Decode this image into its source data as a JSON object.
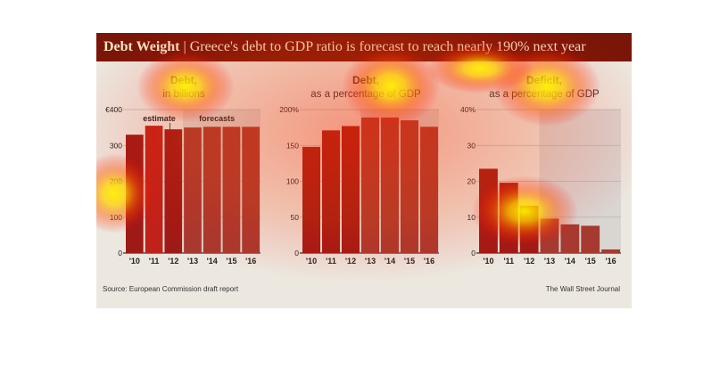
{
  "header": {
    "title_bold": "Debt Weight",
    "separator": "|",
    "title_rest": "Greece's debt to GDP ratio is forecast to reach nearly 190% next year"
  },
  "footer": {
    "source": "Source: European Commission draft report",
    "credit": "The Wall Street Journal"
  },
  "colors": {
    "actual_bar": "#9e1a16",
    "highlight_bar": "#c0221a",
    "forecast_bar": "#a63a30",
    "forecast_shade": "#d9d6d2",
    "axis": "#333333",
    "grid": "#bdb6ab"
  },
  "chart_data": [
    {
      "type": "bar",
      "title": "Debt,",
      "subtitle": "in billions",
      "categories": [
        "'10",
        "'11",
        "'12",
        "'13",
        "'14",
        "'15",
        "'16"
      ],
      "values": [
        330,
        355,
        345,
        350,
        352,
        352,
        352
      ],
      "ylim": [
        0,
        400
      ],
      "yticks": [
        0,
        100,
        200,
        300,
        400
      ],
      "ytick_labels": [
        "0",
        "100",
        "200",
        "300",
        "€400"
      ],
      "forecast_from_index": 3,
      "annotations": [
        "estimate",
        "forecasts"
      ]
    },
    {
      "type": "bar",
      "title": "Debt,",
      "subtitle": "as a percentage of GDP",
      "categories": [
        "'10",
        "'11",
        "'12",
        "'13",
        "'14",
        "'15",
        "'16"
      ],
      "values": [
        148,
        171,
        177,
        189,
        189,
        185,
        176
      ],
      "ylim": [
        0,
        200
      ],
      "yticks": [
        0,
        50,
        100,
        150,
        200
      ],
      "ytick_labels": [
        "0",
        "50",
        "100",
        "150",
        "200%"
      ],
      "forecast_from_index": 3
    },
    {
      "type": "bar",
      "title": "Deficit,",
      "subtitle": "as a percentage of GDP",
      "categories": [
        "'10",
        "'11",
        "'12",
        "'13",
        "'14",
        "'15",
        "'16"
      ],
      "values": [
        23.5,
        19.6,
        13.2,
        9.6,
        8.0,
        7.6,
        1.0
      ],
      "ylim": [
        0,
        40
      ],
      "yticks": [
        0,
        10,
        20,
        30,
        40
      ],
      "ytick_labels": [
        "0",
        "10",
        "20",
        "30",
        "40%"
      ],
      "forecast_from_index": 3
    }
  ]
}
